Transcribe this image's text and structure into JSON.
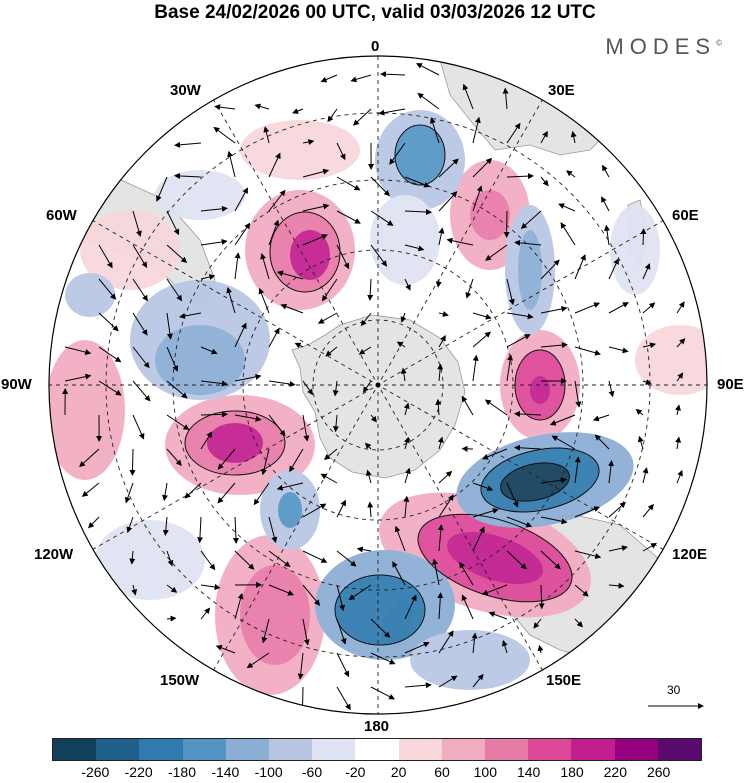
{
  "title": "Base 24/02/2026 00 UTC, valid 03/03/2026 12 UTC",
  "brand": "MODES",
  "brand_mark": "©",
  "longitude_labels": {
    "top": "0",
    "top_right": "30E",
    "right_upper": "60E",
    "right": "90E",
    "right_lower": "120E",
    "bottom_right": "150E",
    "bottom": "180",
    "bottom_left": "150W",
    "left_lower": "120W",
    "left": "90W",
    "left_upper": "60W",
    "top_left": "30W"
  },
  "reference_vector": {
    "label": "30"
  },
  "colorbar": {
    "colors": [
      "#123f5a",
      "#1f5f8a",
      "#2f7bb0",
      "#5595c4",
      "#8aaed4",
      "#b8c6e4",
      "#dfe2f2",
      "#ffffff",
      "#f7d7dc",
      "#f2acc0",
      "#e87aa7",
      "#dd4798",
      "#c21e8f",
      "#95007f",
      "#5a0b6f"
    ],
    "tick_labels": [
      "-260",
      "-220",
      "-180",
      "-140",
      "-100",
      "-60",
      "-20",
      "20",
      "60",
      "100",
      "140",
      "180",
      "220",
      "260"
    ]
  }
}
